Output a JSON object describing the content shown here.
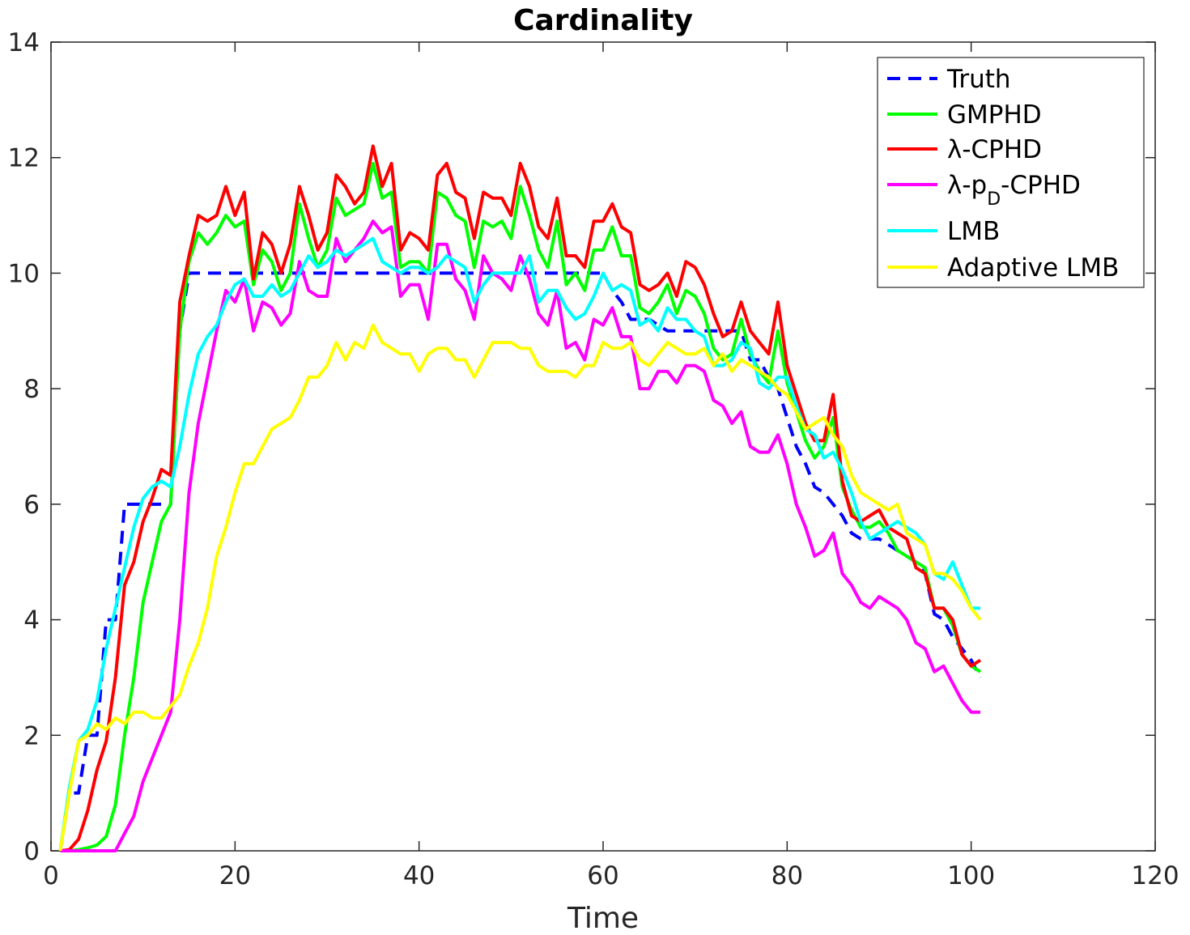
{
  "chart_data": {
    "type": "line",
    "title": "Cardinality",
    "xlabel": "Time",
    "ylabel": "",
    "xlim": [
      0,
      120
    ],
    "ylim": [
      0,
      14
    ],
    "xticks": [
      "0",
      "20",
      "40",
      "60",
      "80",
      "100",
      "120"
    ],
    "yticks": [
      "0",
      "2",
      "4",
      "6",
      "8",
      "10",
      "12",
      "14"
    ],
    "legend_position": "top-right",
    "grid": false,
    "x": [
      1,
      2,
      3,
      4,
      5,
      6,
      7,
      8,
      9,
      10,
      11,
      12,
      13,
      14,
      15,
      16,
      17,
      18,
      19,
      20,
      21,
      22,
      23,
      24,
      25,
      26,
      27,
      28,
      29,
      30,
      31,
      32,
      33,
      34,
      35,
      36,
      37,
      38,
      39,
      40,
      41,
      42,
      43,
      44,
      45,
      46,
      47,
      48,
      49,
      50,
      51,
      52,
      53,
      54,
      55,
      56,
      57,
      58,
      59,
      60,
      61,
      62,
      63,
      64,
      65,
      66,
      67,
      68,
      69,
      70,
      71,
      72,
      73,
      74,
      75,
      76,
      77,
      78,
      79,
      80,
      81,
      82,
      83,
      84,
      85,
      86,
      87,
      88,
      89,
      90,
      91,
      92,
      93,
      94,
      95,
      96,
      97,
      98,
      99,
      100,
      101
    ],
    "series": [
      {
        "name": "Truth",
        "color": "#0000ff",
        "dash": true,
        "values": [
          0,
          1,
          1,
          2,
          2,
          4,
          4,
          6,
          6,
          6,
          6,
          6,
          6,
          9,
          10,
          10,
          10,
          10,
          10,
          10,
          10,
          10,
          10,
          10,
          10,
          10,
          10,
          10,
          10,
          10,
          10,
          10,
          10,
          10,
          10,
          10,
          10,
          10,
          10,
          10,
          10,
          10,
          10,
          10,
          10,
          10,
          10,
          10,
          10,
          10,
          10,
          10,
          10,
          10,
          10,
          10,
          10,
          10,
          10,
          10,
          9.7,
          9.5,
          9.2,
          9.2,
          9.2,
          9.1,
          9,
          9,
          9,
          9,
          9,
          9,
          9,
          9,
          9,
          8.5,
          8.5,
          8.2,
          8,
          7.5,
          7,
          6.7,
          6.3,
          6.2,
          6,
          5.8,
          5.5,
          5.4,
          5.4,
          5.4,
          5.3,
          5.2,
          5.1,
          5,
          4.8,
          4.1,
          4,
          3.7,
          3.5,
          3.3,
          3
        ]
      },
      {
        "name": "GMPHD",
        "color": "#00ff00",
        "values": [
          0,
          0,
          0.02,
          0.05,
          0.1,
          0.25,
          0.8,
          2,
          3,
          4.3,
          5,
          5.7,
          6,
          9,
          10.2,
          10.7,
          10.5,
          10.7,
          11,
          10.8,
          10.9,
          9.8,
          10.4,
          10.2,
          9.7,
          10,
          11.2,
          10.6,
          10.1,
          10.4,
          11.3,
          11,
          11.1,
          11.2,
          11.9,
          11.3,
          11.4,
          10.1,
          10.2,
          10.2,
          10,
          11.4,
          11.3,
          11,
          10.9,
          10.1,
          10.9,
          10.8,
          10.9,
          10.6,
          11.5,
          11,
          10.4,
          10.1,
          10.9,
          9.8,
          10,
          9.7,
          10.4,
          10.4,
          10.8,
          10.3,
          10.3,
          9.4,
          9.3,
          9.5,
          9.8,
          9.3,
          9.7,
          9.6,
          9.3,
          8.7,
          8.5,
          8.6,
          9.2,
          8.6,
          8.3,
          8.1,
          9,
          8.1,
          7.6,
          7.1,
          6.8,
          7,
          7.5,
          6.3,
          5.9,
          5.6,
          5.6,
          5.7,
          5.5,
          5.2,
          5.1,
          5,
          4.9,
          4.2,
          4.2,
          3.9,
          3.4,
          3.2,
          3.1
        ]
      },
      {
        "name": "λ-CPHD",
        "color": "#ff0000",
        "values": [
          0,
          0.02,
          0.2,
          0.7,
          1.4,
          1.9,
          3,
          4.6,
          5,
          5.7,
          6.1,
          6.6,
          6.5,
          9.5,
          10.3,
          11,
          10.9,
          11,
          11.5,
          11,
          11.4,
          9.9,
          10.7,
          10.5,
          10,
          10.5,
          11.5,
          11,
          10.4,
          10.7,
          11.7,
          11.5,
          11.2,
          11.4,
          12.2,
          11.5,
          11.9,
          10.4,
          10.7,
          10.6,
          10.4,
          11.7,
          11.9,
          11.4,
          11.3,
          10.6,
          11.4,
          11.3,
          11.3,
          11,
          11.9,
          11.5,
          10.8,
          10.6,
          11.3,
          10.3,
          10.3,
          10.1,
          10.9,
          10.9,
          11.2,
          10.8,
          10.7,
          9.8,
          9.7,
          9.8,
          10,
          9.6,
          10.2,
          10.1,
          9.8,
          9.3,
          8.9,
          9,
          9.5,
          9,
          8.8,
          8.6,
          9.5,
          8.4,
          7.9,
          7.4,
          7.1,
          7.1,
          7.9,
          6.4,
          5.8,
          5.7,
          5.8,
          5.9,
          5.6,
          5.5,
          5.4,
          4.9,
          4.8,
          4.2,
          4.2,
          4,
          3.4,
          3.2,
          3.3
        ]
      },
      {
        "name": "λ-p_D-CPHD",
        "color": "#ff00ff",
        "values": [
          0,
          0,
          0,
          0,
          0,
          0,
          0,
          0.3,
          0.6,
          1.2,
          1.6,
          2,
          2.4,
          4,
          6.2,
          7.4,
          8.2,
          9,
          9.7,
          9.5,
          9.9,
          9,
          9.5,
          9.4,
          9.1,
          9.3,
          10.2,
          9.7,
          9.6,
          9.6,
          10.6,
          10.2,
          10.4,
          10.6,
          10.9,
          10.7,
          10.8,
          9.6,
          9.8,
          9.8,
          9.2,
          10.5,
          10.5,
          9.9,
          9.7,
          9.2,
          10.3,
          10,
          9.9,
          9.7,
          10.3,
          9.9,
          9.3,
          9.1,
          9.7,
          8.7,
          8.8,
          8.5,
          9.2,
          9.1,
          9.4,
          8.9,
          8.9,
          8,
          8,
          8.3,
          8.3,
          8.1,
          8.4,
          8.4,
          8.3,
          7.8,
          7.7,
          7.4,
          7.6,
          7,
          6.9,
          6.9,
          7.2,
          6.7,
          6,
          5.6,
          5.1,
          5.2,
          5.5,
          4.8,
          4.6,
          4.3,
          4.2,
          4.4,
          4.3,
          4.2,
          4,
          3.6,
          3.5,
          3.1,
          3.2,
          2.9,
          2.6,
          2.4,
          2.4
        ]
      },
      {
        "name": "LMB",
        "color": "#00ffff",
        "values": [
          0,
          1.1,
          1.9,
          2.1,
          2.6,
          3.5,
          4.2,
          4.9,
          5.6,
          6.1,
          6.3,
          6.4,
          6.3,
          7,
          7.9,
          8.6,
          8.9,
          9.1,
          9.5,
          9.8,
          9.9,
          9.6,
          9.6,
          9.8,
          9.6,
          9.7,
          10,
          10.3,
          10.1,
          10.2,
          10.4,
          10.3,
          10.4,
          10.5,
          10.6,
          10.2,
          10.1,
          10,
          10.1,
          10.1,
          10,
          10.1,
          10.3,
          10.2,
          10.1,
          9.5,
          9.8,
          10,
          10,
          10,
          10,
          10.3,
          9.5,
          9.7,
          9.7,
          9.4,
          9.2,
          9.3,
          9.6,
          10,
          9.7,
          9.8,
          9.7,
          9.1,
          9.2,
          9,
          9.4,
          9.2,
          9.2,
          9,
          8.9,
          8.4,
          8.4,
          8.5,
          8.8,
          8.7,
          8.1,
          8,
          8.2,
          8.2,
          7.7,
          7.3,
          7.2,
          6.8,
          6.9,
          6.6,
          6.2,
          5.7,
          5.4,
          5.5,
          5.6,
          5.7,
          5.6,
          5.5,
          5.3,
          4.8,
          4.7,
          5,
          4.6,
          4.2,
          4.2
        ]
      },
      {
        "name": "Adaptive LMB",
        "color": "#ffff00",
        "values": [
          0,
          1,
          1.9,
          2,
          2.2,
          2.1,
          2.3,
          2.2,
          2.4,
          2.4,
          2.3,
          2.3,
          2.5,
          2.7,
          3.2,
          3.6,
          4.2,
          5.1,
          5.6,
          6.2,
          6.7,
          6.7,
          7,
          7.3,
          7.4,
          7.5,
          7.8,
          8.2,
          8.2,
          8.4,
          8.8,
          8.5,
          8.8,
          8.7,
          9.1,
          8.8,
          8.7,
          8.6,
          8.6,
          8.3,
          8.6,
          8.7,
          8.7,
          8.5,
          8.5,
          8.2,
          8.5,
          8.8,
          8.8,
          8.8,
          8.7,
          8.7,
          8.4,
          8.3,
          8.3,
          8.3,
          8.2,
          8.4,
          8.4,
          8.8,
          8.7,
          8.7,
          8.8,
          8.5,
          8.4,
          8.6,
          8.8,
          8.7,
          8.6,
          8.6,
          8.7,
          8.4,
          8.6,
          8.3,
          8.5,
          8.4,
          8.3,
          8.2,
          8,
          7.9,
          7.6,
          7.3,
          7.4,
          7.5,
          7.2,
          7,
          6.5,
          6.2,
          6.1,
          6,
          5.9,
          6,
          5.5,
          5.4,
          5.3,
          4.8,
          4.8,
          4.7,
          4.5,
          4.2,
          4
        ]
      }
    ],
    "legend": {
      "entries": [
        {
          "label": "Truth",
          "color": "#0000ff",
          "dash": true
        },
        {
          "label": "GMPHD",
          "color": "#00ff00"
        },
        {
          "label": "λ-CPHD",
          "color": "#ff0000"
        },
        {
          "label_parts": [
            "λ-p",
            "D",
            "-CPHD"
          ],
          "color": "#ff00ff"
        },
        {
          "label": "LMB",
          "color": "#00ffff"
        },
        {
          "label": "Adaptive LMB",
          "color": "#ffff00"
        }
      ]
    }
  }
}
